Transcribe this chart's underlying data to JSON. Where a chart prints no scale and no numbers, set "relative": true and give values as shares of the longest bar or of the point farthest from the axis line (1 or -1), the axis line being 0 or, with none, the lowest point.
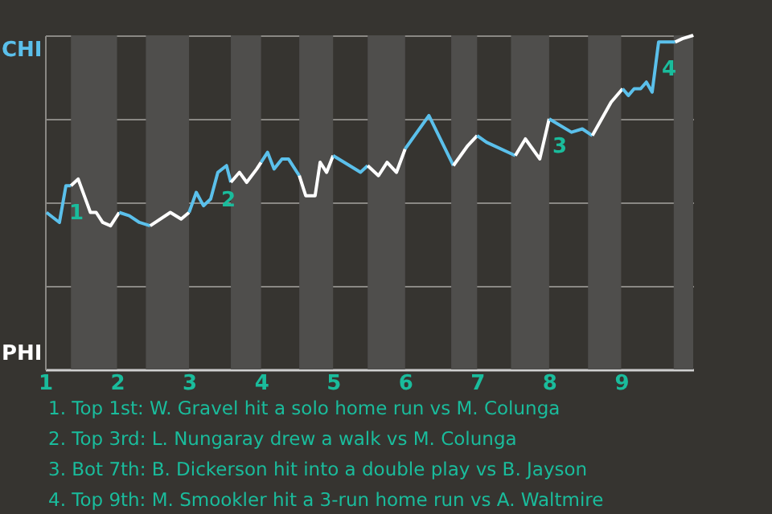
{
  "chart_data": {
    "type": "line",
    "series": [
      {
        "color": "#5bc0eb",
        "x": [
          1.02,
          1.2,
          1.29,
          1.36
        ],
        "values": [
          0.47,
          0.44,
          0.55,
          0.55
        ]
      },
      {
        "color": "#ffffff",
        "x": [
          1.36,
          1.46,
          1.63,
          1.71,
          1.8,
          1.91,
          2.03
        ],
        "values": [
          0.55,
          0.57,
          0.47,
          0.47,
          0.44,
          0.43,
          0.47
        ]
      },
      {
        "color": "#5bc0eb",
        "x": [
          2.03,
          2.17,
          2.31,
          2.46
        ],
        "values": [
          0.47,
          0.46,
          0.44,
          0.43
        ]
      },
      {
        "color": "#ffffff",
        "x": [
          2.46,
          2.74,
          2.89,
          3
        ],
        "values": [
          0.43,
          0.47,
          0.45,
          0.47
        ]
      },
      {
        "color": "#5bc0eb",
        "x": [
          3,
          3.1,
          3.2,
          3.3,
          3.4,
          3.52,
          3.58
        ],
        "values": [
          0.47,
          0.53,
          0.49,
          0.51,
          0.59,
          0.61,
          0.56
        ]
      },
      {
        "color": "#ffffff",
        "x": [
          3.58,
          3.7,
          3.8,
          3.94,
          4
        ],
        "values": [
          0.56,
          0.59,
          0.56,
          0.6,
          0.62
        ]
      },
      {
        "color": "#5bc0eb",
        "x": [
          4,
          4.09,
          4.18,
          4.29,
          4.38,
          4.53
        ],
        "values": [
          0.62,
          0.65,
          0.6,
          0.63,
          0.63,
          0.58
        ]
      },
      {
        "color": "#ffffff",
        "x": [
          4.53,
          4.62,
          4.75,
          4.82,
          4.91,
          5
        ],
        "values": [
          0.58,
          0.52,
          0.52,
          0.62,
          0.59,
          0.64
        ]
      },
      {
        "color": "#5bc0eb",
        "x": [
          5,
          5.23,
          5.38,
          5.48
        ],
        "values": [
          0.64,
          0.61,
          0.59,
          0.61
        ]
      },
      {
        "color": "#ffffff",
        "x": [
          5.48,
          5.63,
          5.75,
          5.88,
          6
        ],
        "values": [
          0.61,
          0.58,
          0.62,
          0.59,
          0.66
        ]
      },
      {
        "color": "#5bc0eb",
        "x": [
          6,
          6.33,
          6.67
        ],
        "values": [
          0.66,
          0.76,
          0.61
        ]
      },
      {
        "color": "#ffffff",
        "x": [
          6.67,
          6.87,
          7
        ],
        "values": [
          0.61,
          0.67,
          0.7
        ]
      },
      {
        "color": "#5bc0eb",
        "x": [
          7,
          7.13,
          7.53
        ],
        "values": [
          0.7,
          0.68,
          0.64
        ]
      },
      {
        "color": "#ffffff",
        "x": [
          7.53,
          7.67,
          7.87,
          8
        ],
        "values": [
          0.64,
          0.69,
          0.63,
          0.75
        ]
      },
      {
        "color": "#5bc0eb",
        "x": [
          8,
          8.31,
          8.46,
          8.6
        ],
        "values": [
          0.75,
          0.71,
          0.72,
          0.7
        ]
      },
      {
        "color": "#ffffff",
        "x": [
          8.6,
          8.86,
          9.02
        ],
        "values": [
          0.7,
          0.8,
          0.84
        ]
      },
      {
        "color": "#5bc0eb",
        "x": [
          9.02,
          9.1,
          9.18,
          9.27,
          9.35,
          9.43,
          9.52,
          9.75
        ],
        "values": [
          0.84,
          0.82,
          0.84,
          0.84,
          0.86,
          0.83,
          0.98,
          0.98
        ]
      },
      {
        "color": "#ffffff",
        "x": [
          9.75,
          9.85,
          10
        ],
        "values": [
          0.98,
          0.99,
          1.0
        ]
      }
    ],
    "xlim": [
      1,
      10
    ],
    "xticks": [
      1,
      2,
      3,
      4,
      5,
      6,
      7,
      8,
      9
    ],
    "relative": true,
    "grid": "y",
    "legend": false,
    "marker": "none",
    "line_style": "solid",
    "bands": [
      {
        "axis": "x",
        "from": 1.36,
        "to": 2,
        "color": "#4f4e4c"
      },
      {
        "axis": "x",
        "from": 2.4,
        "to": 3,
        "color": "#4f4e4c"
      },
      {
        "axis": "x",
        "from": 3.58,
        "to": 4,
        "color": "#4f4e4c"
      },
      {
        "axis": "x",
        "from": 4.53,
        "to": 5,
        "color": "#4f4e4c"
      },
      {
        "axis": "x",
        "from": 5.48,
        "to": 6,
        "color": "#4f4e4c"
      },
      {
        "axis": "x",
        "from": 6.64,
        "to": 7,
        "color": "#4f4e4c"
      },
      {
        "axis": "x",
        "from": 7.47,
        "to": 8,
        "color": "#4f4e4c"
      },
      {
        "axis": "x",
        "from": 8.54,
        "to": 9,
        "color": "#4f4e4c"
      },
      {
        "axis": "x",
        "from": 9.73,
        "to": 10,
        "color": "#4f4e4c"
      }
    ],
    "annotations": [
      {
        "text": "1",
        "x": 1.29,
        "y": 0.55
      },
      {
        "text": "2",
        "x": 3.4,
        "y": 0.59
      },
      {
        "text": "3",
        "x": 8,
        "y": 0.75
      },
      {
        "text": "4",
        "x": 9.52,
        "y": 0.98
      },
      "CHI",
      "PHI",
      "1. Top 1st: W. Gravel hit a solo home run vs M. Colunga",
      "2. Top 3rd: L. Nungaray drew a walk vs M. Colunga",
      "3. Bot 7th: B. Dickerson hit into a double play vs B. Jayson",
      "4. Top 9th: M. Smookler hit a 3-run home run vs A. Waltmire"
    ]
  }
}
